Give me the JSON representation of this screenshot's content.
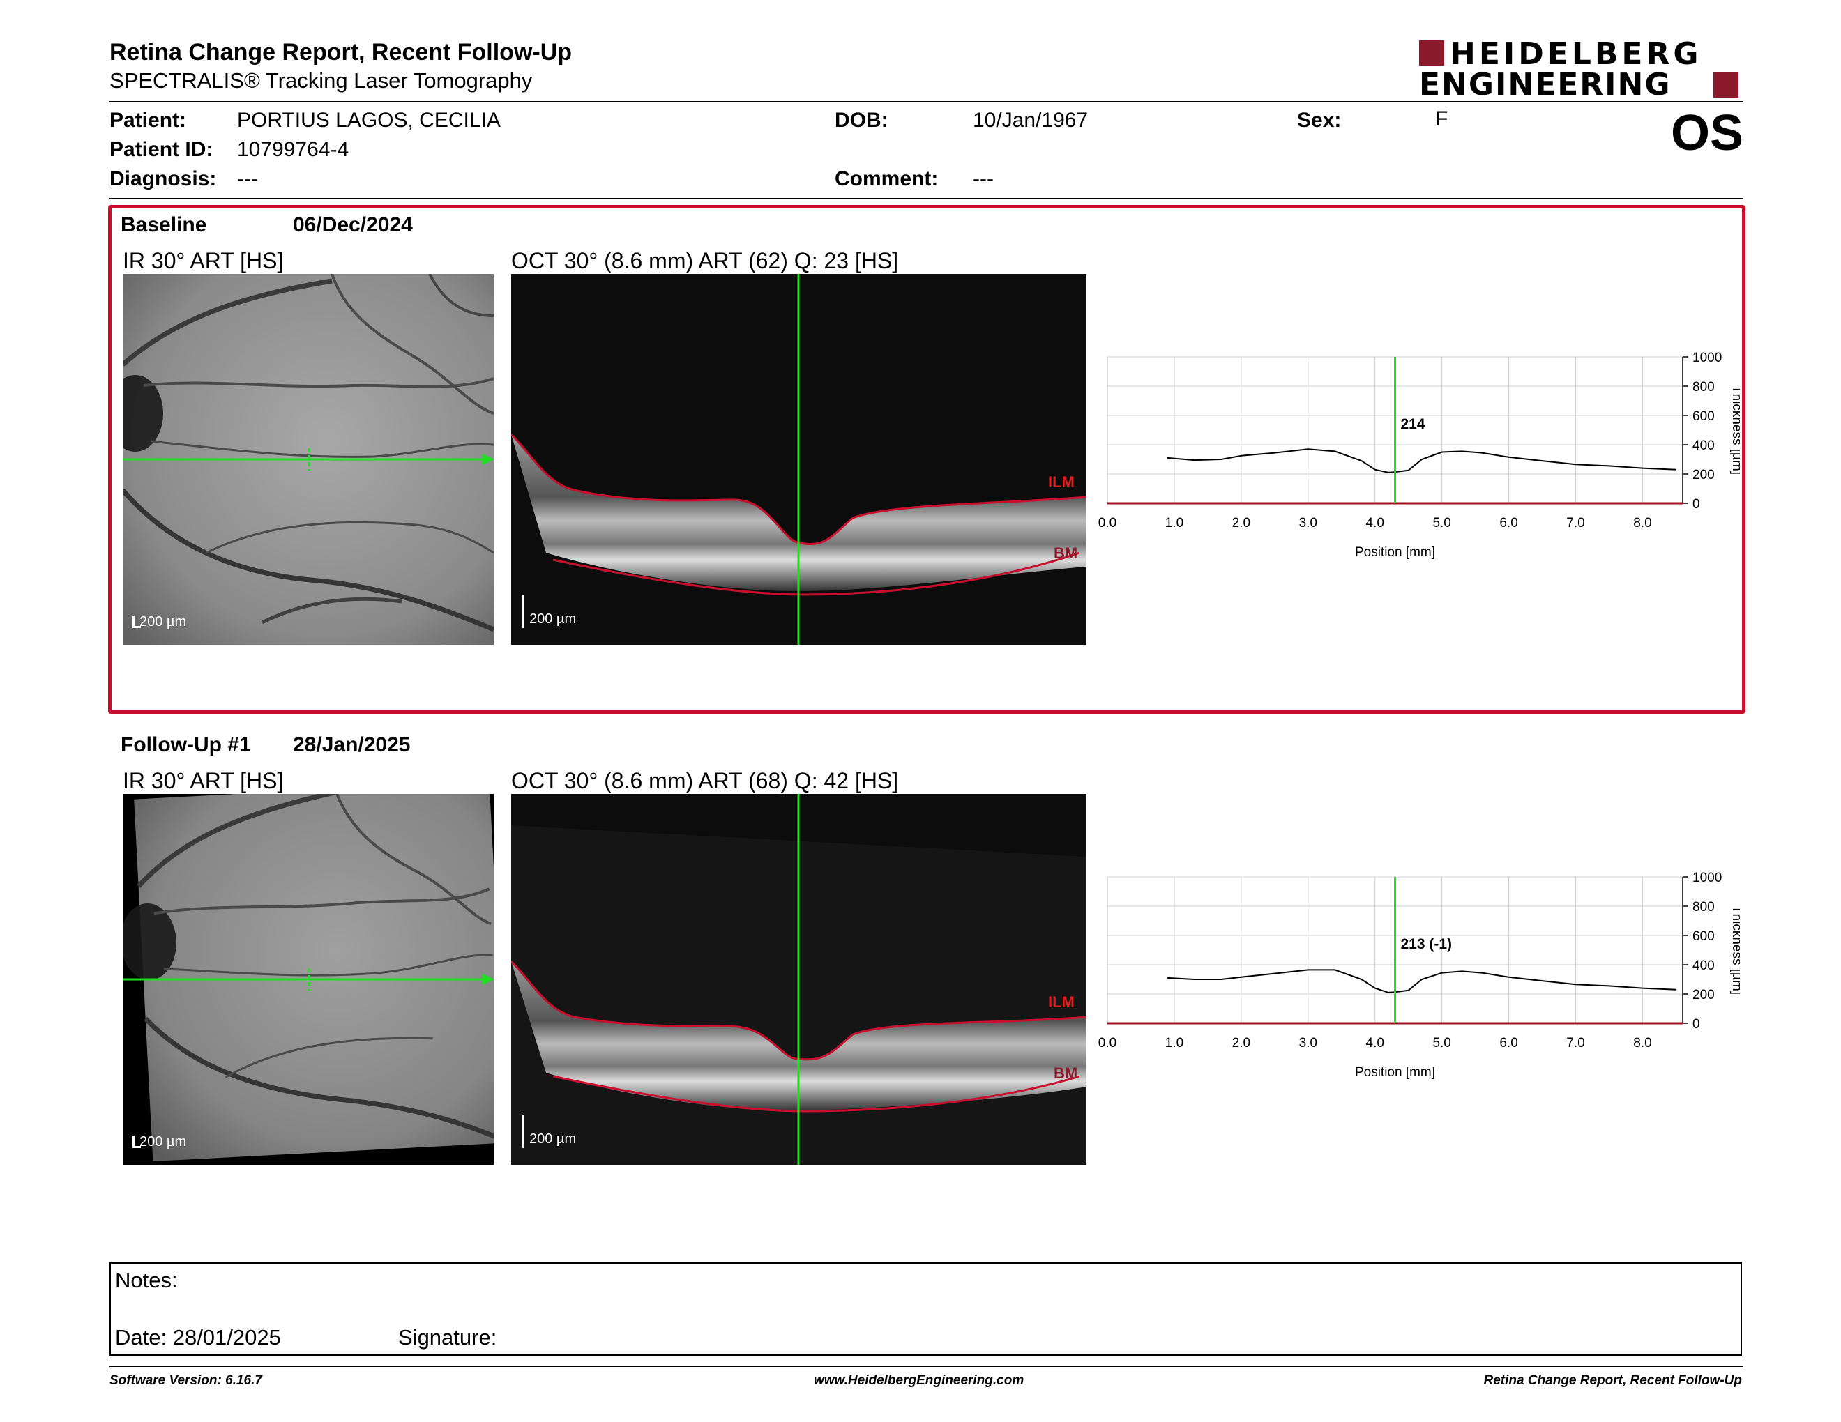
{
  "report": {
    "title": "Retina Change Report, Recent Follow-Up",
    "subtitle": "SPECTRALIS® Tracking Laser Tomography",
    "logo_line1": "HEIDELBERG",
    "logo_line2": "ENGINEERING",
    "eye": "OS"
  },
  "patient": {
    "patient_label": "Patient:",
    "patient_value": "PORTIUS LAGOS, CECILIA",
    "id_label": "Patient ID:",
    "id_value": "10799764-4",
    "diagnosis_label": "Diagnosis:",
    "diagnosis_value": "---",
    "dob_label": "DOB:",
    "dob_value": "10/Jan/1967",
    "comment_label": "Comment:",
    "comment_value": "---",
    "sex_label": "Sex:",
    "sex_value": "F"
  },
  "exams": [
    {
      "name": "Baseline",
      "date": "06/Dec/2024",
      "ir_label": "IR 30° ART [HS]",
      "oct_label": "OCT 30° (8.6 mm) ART (62) Q: 23 [HS]",
      "scale": "200 µm",
      "ilm": "ILM",
      "bm": "BM",
      "value_label": "214"
    },
    {
      "name": "Follow-Up #1",
      "date": "28/Jan/2025",
      "ir_label": "IR 30° ART [HS]",
      "oct_label": "OCT 30° (8.6 mm) ART (68) Q: 42 [HS]",
      "scale": "200 µm",
      "ilm": "ILM",
      "bm": "BM",
      "value_label": "213 (-1)"
    }
  ],
  "chart_data": [
    {
      "type": "line",
      "xlabel": "Position [mm]",
      "ylabel": "Thickness [µm]",
      "xlim": [
        0,
        8.6
      ],
      "ylim": [
        0,
        1000
      ],
      "x_ticks": [
        "0.0",
        "1.0",
        "2.0",
        "3.0",
        "4.0",
        "5.0",
        "6.0",
        "7.0",
        "8.0"
      ],
      "y_ticks": [
        "0",
        "200",
        "400",
        "600",
        "800",
        "1000"
      ],
      "cursor_x": 4.3,
      "cursor_label": "214",
      "series": [
        {
          "x": [
            0.9,
            1.3,
            1.7,
            2.0,
            2.5,
            3.0,
            3.4,
            3.8,
            4.0,
            4.2,
            4.3,
            4.5,
            4.7,
            5.0,
            5.3,
            5.6,
            6.0,
            6.5,
            7.0,
            7.5,
            8.0,
            8.5
          ],
          "values": [
            310,
            295,
            300,
            325,
            345,
            370,
            355,
            290,
            230,
            210,
            214,
            225,
            300,
            350,
            355,
            345,
            315,
            290,
            265,
            255,
            240,
            230
          ]
        }
      ]
    },
    {
      "type": "line",
      "xlabel": "Position [mm]",
      "ylabel": "Thickness [µm]",
      "xlim": [
        0,
        8.6
      ],
      "ylim": [
        0,
        1000
      ],
      "x_ticks": [
        "0.0",
        "1.0",
        "2.0",
        "3.0",
        "4.0",
        "5.0",
        "6.0",
        "7.0",
        "8.0"
      ],
      "y_ticks": [
        "0",
        "200",
        "400",
        "600",
        "800",
        "1000"
      ],
      "cursor_x": 4.3,
      "cursor_label": "213 (-1)",
      "series": [
        {
          "x": [
            0.9,
            1.3,
            1.7,
            2.0,
            2.5,
            3.0,
            3.4,
            3.8,
            4.0,
            4.2,
            4.3,
            4.5,
            4.7,
            5.0,
            5.3,
            5.6,
            6.0,
            6.5,
            7.0,
            7.5,
            8.0,
            8.5
          ],
          "values": [
            310,
            300,
            300,
            315,
            340,
            365,
            365,
            300,
            240,
            210,
            213,
            225,
            300,
            345,
            355,
            345,
            315,
            290,
            265,
            255,
            240,
            230
          ]
        }
      ]
    }
  ],
  "notes": {
    "notes_label": "Notes:",
    "date_label": "Date: 28/01/2025",
    "signature_label": "Signature:"
  },
  "footer": {
    "left": "Software Version: 6.16.7",
    "center": "www.HeidelbergEngineering.com",
    "right": "Retina Change Report, Recent Follow-Up"
  },
  "colors": {
    "accent": "#c8102e",
    "scan_line": "#1fe01f"
  }
}
